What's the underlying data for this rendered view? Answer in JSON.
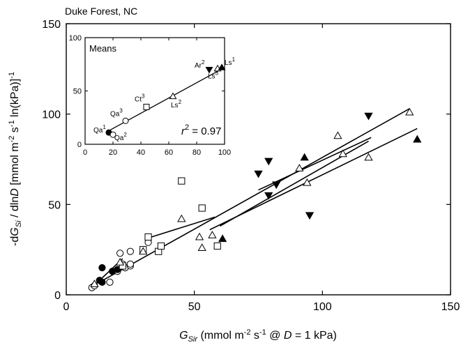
{
  "chart_data": {
    "type": "scatter",
    "site_label": "Duke Forest, NC",
    "xlabel": {
      "italic_main": "G",
      "italic_sub": "Sir",
      "pre_sup": " (mmol m",
      "sup1": "-2",
      "mid": " s",
      "sup2": "-1",
      "post": " @ ",
      "italic_d": "D",
      "tail": " = 1 kPa)"
    },
    "ylabel": {
      "prefix": "-d",
      "italic_main": "G",
      "italic_sub": "Si",
      "mid1": " / dln",
      "italic_d": "D",
      "mid2": " [mmol m",
      "sup1": "-2",
      "mid3": " s",
      "sup2": "-1",
      "mid4": " ln(kPa)]",
      "sup3": "-1"
    },
    "xlim": [
      0,
      150
    ],
    "ylim": [
      0,
      150
    ],
    "xticks": [
      0,
      50,
      100,
      150
    ],
    "yticks": [
      0,
      50,
      100,
      150
    ],
    "series": [
      {
        "marker": "circle-open",
        "points": [
          [
            10,
            4
          ],
          [
            11,
            5
          ],
          [
            17,
            7
          ],
          [
            20,
            13
          ],
          [
            21,
            23
          ],
          [
            22,
            17
          ],
          [
            23,
            15
          ],
          [
            25,
            16
          ],
          [
            25,
            24
          ],
          [
            25,
            17
          ],
          [
            32,
            29
          ]
        ]
      },
      {
        "marker": "circle-filled",
        "points": [
          [
            13,
            8
          ],
          [
            14,
            7
          ],
          [
            14,
            15
          ],
          [
            18,
            13
          ],
          [
            20,
            14
          ],
          [
            22,
            16
          ]
        ]
      },
      {
        "marker": "square-open",
        "points": [
          [
            22,
            16
          ],
          [
            30,
            25
          ],
          [
            32,
            32
          ],
          [
            36,
            24
          ],
          [
            37,
            27
          ],
          [
            45,
            63
          ],
          [
            53,
            48
          ],
          [
            59,
            27
          ]
        ]
      },
      {
        "marker": "triangle-up-open",
        "points": [
          [
            11,
            6
          ],
          [
            21,
            18
          ],
          [
            30,
            24
          ],
          [
            45,
            42
          ],
          [
            52,
            32
          ],
          [
            53,
            26
          ],
          [
            57,
            33
          ],
          [
            91,
            70
          ],
          [
            94,
            62
          ],
          [
            106,
            88
          ],
          [
            108,
            78
          ],
          [
            118,
            76
          ],
          [
            134,
            101
          ]
        ]
      },
      {
        "marker": "triangle-up-filled",
        "points": [
          [
            61,
            31
          ],
          [
            93,
            76
          ],
          [
            137,
            86
          ]
        ]
      },
      {
        "marker": "triangle-down-filled",
        "points": [
          [
            75,
            67
          ],
          [
            79,
            74
          ],
          [
            79,
            55
          ],
          [
            82,
            61
          ],
          [
            95,
            44
          ],
          [
            118,
            99
          ]
        ]
      }
    ],
    "regression_lines": [
      {
        "from": [
          10,
          4
        ],
        "to": [
          22,
          20
        ]
      },
      {
        "from": [
          13,
          7
        ],
        "to": [
          134,
          103
        ]
      },
      {
        "from": [
          31,
          31
        ],
        "to": [
          58,
          43
        ]
      },
      {
        "from": [
          75,
          58
        ],
        "to": [
          119,
          87
        ]
      },
      {
        "from": [
          56,
          36
        ],
        "to": [
          137,
          92
        ]
      },
      {
        "from": [
          60,
          38
        ],
        "to": [
          118,
          85
        ]
      }
    ],
    "inset": {
      "title": "Means",
      "xlim": [
        0,
        100
      ],
      "ylim": [
        0,
        100
      ],
      "xticks": [
        0,
        20,
        40,
        60,
        80,
        100
      ],
      "yticks": [
        0,
        50,
        100
      ],
      "r_squared": {
        "italic": "r",
        "sup": "2",
        "text": " = 0.97"
      },
      "fit_line": {
        "from": [
          16,
          12
        ],
        "to": [
          100,
          72
        ]
      },
      "points": [
        {
          "marker": "circle-filled",
          "x": 17,
          "y": 11,
          "name": "Qa",
          "sup": "1"
        },
        {
          "marker": "circle-open",
          "x": 20,
          "y": 9,
          "name": "Qa",
          "sup": "2"
        },
        {
          "marker": "circle-open",
          "x": 29,
          "y": 22,
          "name": "Qa",
          "sup": "3"
        },
        {
          "marker": "square-open",
          "x": 44,
          "y": 35,
          "name": "Ct",
          "sup": "3"
        },
        {
          "marker": "triangle-up-open",
          "x": 63,
          "y": 45,
          "name": "Ls",
          "sup": "2"
        },
        {
          "marker": "triangle-down-filled",
          "x": 89,
          "y": 70,
          "name": "Ar",
          "sup": "2"
        },
        {
          "marker": "triangle-up-open",
          "x": 95,
          "y": 71,
          "name": "Ls",
          "sup": "3"
        },
        {
          "marker": "triangle-up-filled",
          "x": 98,
          "y": 72,
          "name": "Ls",
          "sup": "1"
        }
      ]
    }
  }
}
